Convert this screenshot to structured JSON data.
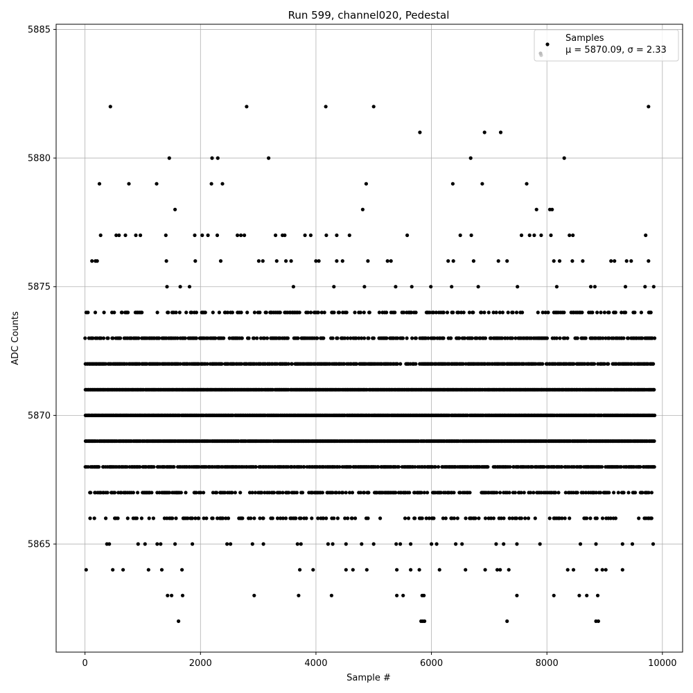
{
  "chart_data": {
    "type": "scatter",
    "title": "Run 599, channel020, Pedestal",
    "xlabel": "Sample #",
    "ylabel": "ADC Counts",
    "xlim": [
      -500,
      10350
    ],
    "ylim": [
      5860.8,
      5885.2
    ],
    "xticks": [
      0,
      2000,
      4000,
      6000,
      8000,
      10000
    ],
    "yticks": [
      5865,
      5870,
      5875,
      5880,
      5885
    ],
    "grid": true,
    "legend_position": "top-right",
    "series": [
      {
        "name": "Samples",
        "stats_label": "μ = 5870.09, σ = 2.33",
        "mean": 5870.09,
        "sigma": 2.33,
        "n_samples": 9870,
        "color": "#000000",
        "dense_levels": [
          5866,
          5867,
          5868,
          5869,
          5870,
          5871,
          5872,
          5873,
          5874
        ],
        "points": [
          [
            20,
            5864
          ],
          [
            440,
            5882
          ],
          [
            250,
            5879
          ],
          [
            760,
            5879
          ],
          [
            1240,
            5879
          ],
          [
            1460,
            5880
          ],
          [
            1560,
            5878
          ],
          [
            1620,
            5862
          ],
          [
            1430,
            5863
          ],
          [
            1500,
            5863
          ],
          [
            1690,
            5863
          ],
          [
            1680,
            5864
          ],
          [
            1100,
            5864
          ],
          [
            1330,
            5864
          ],
          [
            480,
            5864
          ],
          [
            660,
            5864
          ],
          [
            2200,
            5880
          ],
          [
            2300,
            5880
          ],
          [
            2190,
            5879
          ],
          [
            2380,
            5879
          ],
          [
            2800,
            5882
          ],
          [
            3180,
            5880
          ],
          [
            2930,
            5863
          ],
          [
            3700,
            5863
          ],
          [
            3720,
            5864
          ],
          [
            3950,
            5864
          ],
          [
            4170,
            5882
          ],
          [
            4270,
            5863
          ],
          [
            4520,
            5864
          ],
          [
            4640,
            5864
          ],
          [
            4810,
            5878
          ],
          [
            4870,
            5879
          ],
          [
            4880,
            5864
          ],
          [
            5000,
            5882
          ],
          [
            5400,
            5863
          ],
          [
            5510,
            5863
          ],
          [
            5400,
            5864
          ],
          [
            5640,
            5864
          ],
          [
            5800,
            5881
          ],
          [
            5840,
            5863
          ],
          [
            5870,
            5863
          ],
          [
            5820,
            5862
          ],
          [
            5850,
            5862
          ],
          [
            5880,
            5862
          ],
          [
            5790,
            5864
          ],
          [
            6140,
            5864
          ],
          [
            6370,
            5879
          ],
          [
            6590,
            5864
          ],
          [
            6680,
            5880
          ],
          [
            6880,
            5879
          ],
          [
            6920,
            5881
          ],
          [
            7200,
            5881
          ],
          [
            6930,
            5864
          ],
          [
            7140,
            5864
          ],
          [
            7190,
            5864
          ],
          [
            7340,
            5864
          ],
          [
            7310,
            5862
          ],
          [
            7480,
            5863
          ],
          [
            7650,
            5879
          ],
          [
            7820,
            5878
          ],
          [
            7900,
            5884
          ],
          [
            8050,
            5878
          ],
          [
            8090,
            5878
          ],
          [
            8120,
            5863
          ],
          [
            8300,
            5880
          ],
          [
            8360,
            5864
          ],
          [
            8460,
            5864
          ],
          [
            8560,
            5863
          ],
          [
            8690,
            5863
          ],
          [
            8850,
            5862
          ],
          [
            8890,
            5862
          ],
          [
            8880,
            5863
          ],
          [
            8860,
            5864
          ],
          [
            8960,
            5864
          ],
          [
            9020,
            5864
          ],
          [
            9310,
            5864
          ],
          [
            9760,
            5882
          ],
          [
            120,
            5876
          ],
          [
            180,
            5876
          ],
          [
            210,
            5876
          ],
          [
            270,
            5877
          ],
          [
            540,
            5877
          ],
          [
            590,
            5877
          ],
          [
            700,
            5877
          ],
          [
            880,
            5877
          ],
          [
            960,
            5877
          ],
          [
            1400,
            5877
          ],
          [
            1410,
            5876
          ],
          [
            1900,
            5877
          ],
          [
            1910,
            5876
          ],
          [
            2030,
            5877
          ],
          [
            2130,
            5877
          ],
          [
            2290,
            5877
          ],
          [
            2350,
            5876
          ],
          [
            2640,
            5877
          ],
          [
            2700,
            5877
          ],
          [
            2760,
            5877
          ],
          [
            3010,
            5876
          ],
          [
            3080,
            5876
          ],
          [
            3300,
            5877
          ],
          [
            3320,
            5876
          ],
          [
            3420,
            5877
          ],
          [
            3460,
            5877
          ],
          [
            3480,
            5876
          ],
          [
            3570,
            5876
          ],
          [
            3810,
            5877
          ],
          [
            3910,
            5877
          ],
          [
            4000,
            5876
          ],
          [
            4050,
            5876
          ],
          [
            4180,
            5877
          ],
          [
            4360,
            5877
          ],
          [
            4360,
            5876
          ],
          [
            4460,
            5876
          ],
          [
            4580,
            5877
          ],
          [
            4900,
            5876
          ],
          [
            5240,
            5876
          ],
          [
            5300,
            5876
          ],
          [
            5580,
            5877
          ],
          [
            6290,
            5876
          ],
          [
            6380,
            5876
          ],
          [
            6500,
            5877
          ],
          [
            6690,
            5877
          ],
          [
            6730,
            5876
          ],
          [
            7160,
            5876
          ],
          [
            7310,
            5876
          ],
          [
            7560,
            5877
          ],
          [
            7700,
            5877
          ],
          [
            7780,
            5877
          ],
          [
            7900,
            5877
          ],
          [
            8070,
            5877
          ],
          [
            8120,
            5876
          ],
          [
            8220,
            5876
          ],
          [
            8390,
            5877
          ],
          [
            8450,
            5877
          ],
          [
            8440,
            5876
          ],
          [
            8620,
            5876
          ],
          [
            9110,
            5876
          ],
          [
            9170,
            5876
          ],
          [
            9380,
            5876
          ],
          [
            9460,
            5876
          ],
          [
            9710,
            5877
          ],
          [
            9760,
            5876
          ],
          [
            9700,
            5875
          ],
          [
            9800,
            5874
          ],
          [
            380,
            5865
          ],
          [
            420,
            5865
          ],
          [
            920,
            5865
          ],
          [
            1040,
            5865
          ],
          [
            1250,
            5865
          ],
          [
            1310,
            5865
          ],
          [
            1560,
            5865
          ],
          [
            1860,
            5865
          ],
          [
            2460,
            5865
          ],
          [
            2520,
            5865
          ],
          [
            2900,
            5865
          ],
          [
            3090,
            5865
          ],
          [
            3680,
            5865
          ],
          [
            3740,
            5865
          ],
          [
            4210,
            5865
          ],
          [
            4290,
            5865
          ],
          [
            4520,
            5865
          ],
          [
            4790,
            5865
          ],
          [
            5000,
            5865
          ],
          [
            5390,
            5865
          ],
          [
            5460,
            5865
          ],
          [
            5640,
            5865
          ],
          [
            6000,
            5865
          ],
          [
            6090,
            5865
          ],
          [
            6420,
            5865
          ],
          [
            6530,
            5865
          ],
          [
            7120,
            5865
          ],
          [
            7250,
            5865
          ],
          [
            7480,
            5865
          ],
          [
            7880,
            5865
          ],
          [
            8580,
            5865
          ],
          [
            8850,
            5865
          ],
          [
            9310,
            5865
          ],
          [
            9480,
            5865
          ],
          [
            9840,
            5865
          ],
          [
            1420,
            5875
          ],
          [
            1650,
            5875
          ],
          [
            1810,
            5875
          ],
          [
            3610,
            5875
          ],
          [
            4310,
            5875
          ],
          [
            4840,
            5875
          ],
          [
            5380,
            5875
          ],
          [
            5660,
            5875
          ],
          [
            5990,
            5875
          ],
          [
            6350,
            5875
          ],
          [
            6810,
            5875
          ],
          [
            7490,
            5875
          ],
          [
            8170,
            5875
          ],
          [
            8760,
            5875
          ],
          [
            8830,
            5875
          ],
          [
            9360,
            5875
          ],
          [
            9850,
            5875
          ]
        ]
      }
    ]
  }
}
